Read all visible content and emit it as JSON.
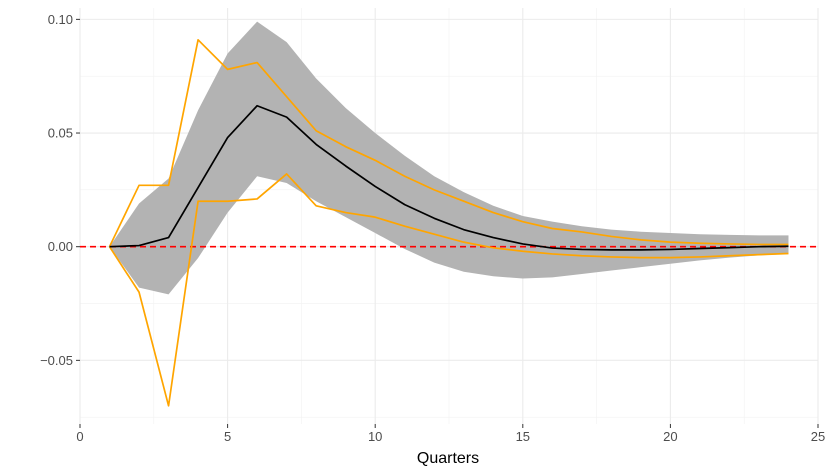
{
  "chart_data": {
    "type": "line",
    "title": "",
    "xlabel": "Quarters",
    "ylabel": "",
    "xlim": [
      0,
      25
    ],
    "ylim": [
      -0.078,
      0.105
    ],
    "x_ticks": [
      0,
      5,
      10,
      15,
      20,
      25
    ],
    "x_tick_labels": [
      "0",
      "5",
      "10",
      "15",
      "20",
      "25"
    ],
    "y_ticks": [
      -0.05,
      0.0,
      0.05,
      0.1
    ],
    "y_tick_labels": [
      "−0.05",
      "0.00",
      "0.05",
      "0.10"
    ],
    "grid": true,
    "reference_line": {
      "y": 0,
      "color": "#ff0000",
      "style": "dashed"
    },
    "x": [
      1,
      2,
      3,
      4,
      5,
      6,
      7,
      8,
      9,
      10,
      11,
      12,
      13,
      14,
      15,
      16,
      17,
      18,
      19,
      20,
      21,
      22,
      23,
      24
    ],
    "band": {
      "color": "#b3b3b3",
      "lower": [
        0.0,
        -0.018,
        -0.021,
        -0.005,
        0.015,
        0.031,
        0.028,
        0.02,
        0.013,
        0.006,
        -0.001,
        -0.007,
        -0.011,
        -0.013,
        -0.014,
        -0.0135,
        -0.012,
        -0.0105,
        -0.009,
        -0.0075,
        -0.006,
        -0.0048,
        -0.0038,
        -0.0032
      ],
      "upper": [
        0.0,
        0.019,
        0.03,
        0.06,
        0.085,
        0.099,
        0.09,
        0.074,
        0.061,
        0.05,
        0.04,
        0.031,
        0.024,
        0.018,
        0.0135,
        0.011,
        0.009,
        0.0075,
        0.0066,
        0.006,
        0.0055,
        0.0052,
        0.005,
        0.005
      ]
    },
    "series": [
      {
        "color": "#000000",
        "values": [
          0.0,
          0.0005,
          0.004,
          0.026,
          0.048,
          0.062,
          0.057,
          0.045,
          0.0355,
          0.0265,
          0.0185,
          0.0125,
          0.0075,
          0.004,
          0.0012,
          -0.0006,
          -0.0012,
          -0.0014,
          -0.0014,
          -0.0012,
          -0.0008,
          -0.0004,
          0.0,
          0.0002
        ]
      },
      {
        "color": "#ffa500",
        "values": [
          0.0,
          0.027,
          0.027,
          0.091,
          0.078,
          0.081,
          0.066,
          0.051,
          0.044,
          0.038,
          0.031,
          0.025,
          0.02,
          0.015,
          0.011,
          0.008,
          0.0065,
          0.0045,
          0.003,
          0.002,
          0.0015,
          0.0012,
          0.001,
          0.001
        ]
      },
      {
        "color": "#ffa500",
        "values": [
          0.0,
          -0.02,
          -0.07,
          0.02,
          0.02,
          0.021,
          0.032,
          0.018,
          0.015,
          0.013,
          0.009,
          0.0055,
          0.002,
          -0.0005,
          -0.002,
          -0.0032,
          -0.004,
          -0.0045,
          -0.0048,
          -0.0048,
          -0.0045,
          -0.004,
          -0.0035,
          -0.003
        ]
      }
    ]
  }
}
